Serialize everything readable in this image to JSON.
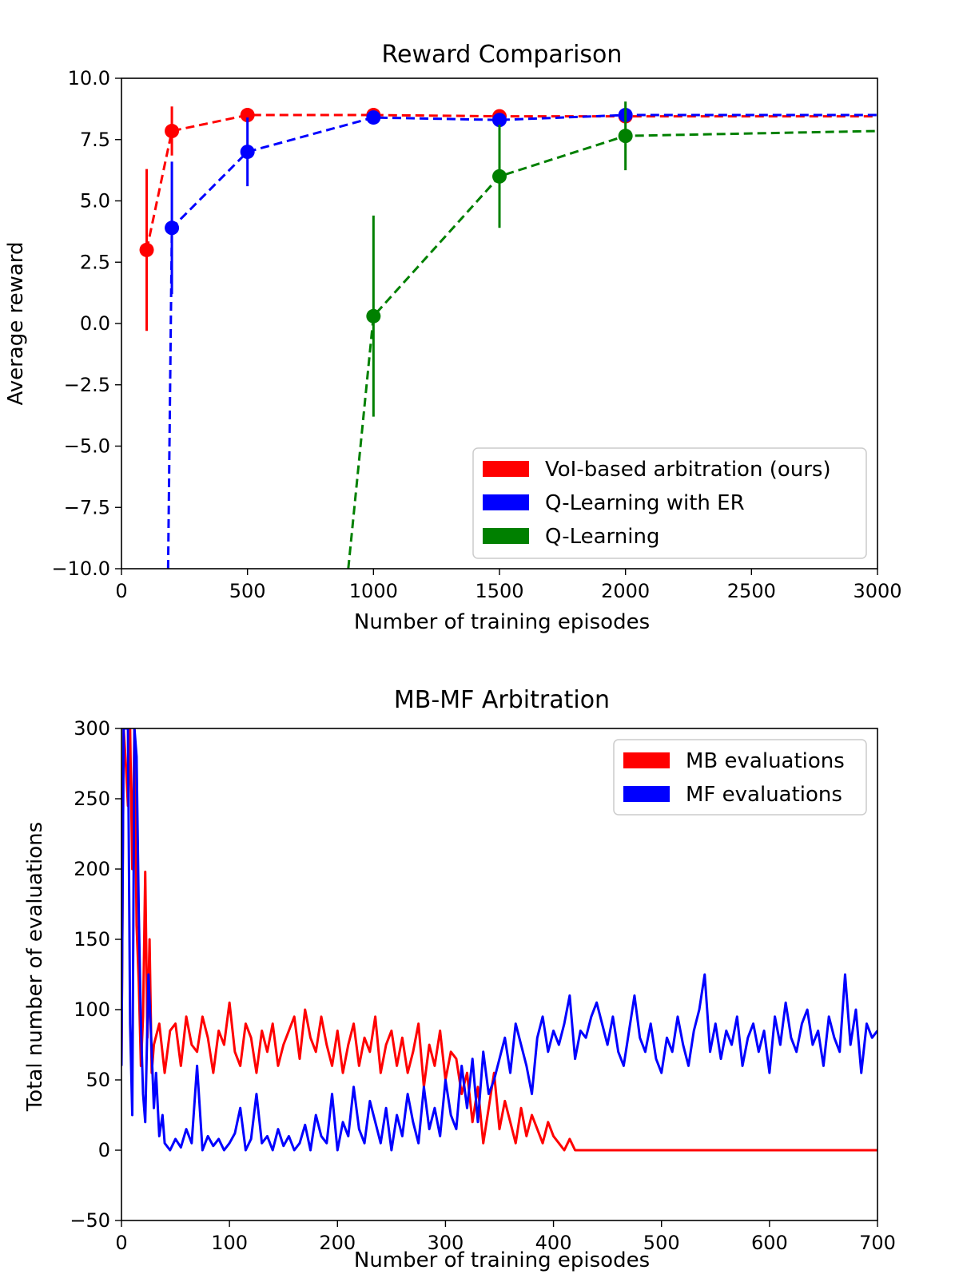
{
  "chart_data": [
    {
      "type": "line",
      "title": "Reward Comparison",
      "xlabel": "Number of training episodes",
      "ylabel": "Average reward",
      "xlim": [
        0,
        3000
      ],
      "ylim": [
        -10,
        10
      ],
      "xticks": [
        0,
        500,
        1000,
        1500,
        2000,
        2500,
        3000
      ],
      "xtick_labels": [
        "0",
        "500",
        "1000",
        "1500",
        "2000",
        "2500",
        "3000"
      ],
      "yticks": [
        -10,
        -7.5,
        -5,
        -2.5,
        0,
        2.5,
        5,
        7.5,
        10
      ],
      "ytick_labels": [
        "−10.0",
        "−7.5",
        "−5.0",
        "−2.5",
        "0.0",
        "2.5",
        "5.0",
        "7.5",
        "10.0"
      ],
      "legend_position": "lower-right",
      "series": [
        {
          "name": "VoI-based arbitration (ours)",
          "color": "#ff0000",
          "x": [
            100,
            200,
            500,
            1000,
            1500,
            2000,
            3000
          ],
          "y": [
            3.0,
            7.85,
            8.5,
            8.5,
            8.45,
            8.45,
            8.45
          ],
          "err": [
            3.3,
            1.0,
            0.0,
            0.0,
            0.0,
            0.0,
            null
          ],
          "markers": [
            true,
            true,
            true,
            true,
            true,
            true,
            false
          ]
        },
        {
          "name": "Q-Learning with ER",
          "color": "#0000ff",
          "x": [
            185,
            200,
            500,
            1000,
            1500,
            2000,
            3000
          ],
          "y": [
            -10,
            3.9,
            7.0,
            8.4,
            8.3,
            8.5,
            8.5
          ],
          "err": [
            null,
            2.7,
            1.4,
            0.0,
            0.0,
            0.0,
            null
          ],
          "markers": [
            false,
            true,
            true,
            true,
            true,
            true,
            false
          ]
        },
        {
          "name": "Q-Learning",
          "color": "#008000",
          "x": [
            900,
            1000,
            1500,
            2000,
            3000
          ],
          "y": [
            -10,
            0.3,
            6.0,
            7.65,
            7.85
          ],
          "err": [
            null,
            4.1,
            2.1,
            1.4,
            null
          ],
          "markers": [
            false,
            true,
            true,
            true,
            false
          ]
        }
      ]
    },
    {
      "type": "line",
      "title": "MB-MF Arbitration",
      "xlabel": "Number of training episodes",
      "ylabel": "Total number of evaluations",
      "xlim": [
        0,
        700
      ],
      "ylim": [
        -50,
        300
      ],
      "xticks": [
        0,
        100,
        200,
        300,
        400,
        500,
        600,
        700
      ],
      "xtick_labels": [
        "0",
        "100",
        "200",
        "300",
        "400",
        "500",
        "600",
        "700"
      ],
      "yticks": [
        -50,
        0,
        50,
        100,
        150,
        200,
        250,
        300
      ],
      "ytick_labels": [
        "−50",
        "0",
        "50",
        "100",
        "150",
        "200",
        "250",
        "300"
      ],
      "legend_position": "top-right",
      "series": [
        {
          "name": "MB evaluations",
          "color": "#ff0000",
          "x": [
            0,
            2,
            4,
            6,
            8,
            10,
            12,
            14,
            16,
            18,
            20,
            22,
            24,
            26,
            28,
            30,
            35,
            40,
            45,
            50,
            55,
            60,
            65,
            70,
            75,
            80,
            85,
            90,
            95,
            100,
            105,
            110,
            115,
            120,
            125,
            130,
            135,
            140,
            145,
            150,
            155,
            160,
            165,
            170,
            175,
            180,
            185,
            190,
            195,
            200,
            205,
            210,
            215,
            220,
            225,
            230,
            235,
            240,
            245,
            250,
            255,
            260,
            265,
            270,
            275,
            280,
            285,
            290,
            295,
            300,
            305,
            310,
            315,
            320,
            325,
            330,
            335,
            340,
            345,
            350,
            355,
            360,
            365,
            370,
            375,
            380,
            385,
            390,
            395,
            400,
            405,
            410,
            415,
            420,
            425,
            700
          ],
          "y": [
            60,
            300,
            275,
            245,
            300,
            200,
            300,
            160,
            120,
            60,
            95,
            198,
            80,
            150,
            55,
            75,
            90,
            55,
            85,
            90,
            60,
            95,
            75,
            70,
            95,
            80,
            55,
            85,
            75,
            105,
            70,
            60,
            90,
            80,
            55,
            85,
            70,
            90,
            60,
            75,
            85,
            95,
            65,
            100,
            80,
            70,
            95,
            75,
            60,
            85,
            55,
            75,
            90,
            60,
            80,
            70,
            95,
            55,
            75,
            85,
            60,
            80,
            55,
            70,
            90,
            45,
            75,
            60,
            85,
            50,
            70,
            65,
            40,
            55,
            20,
            45,
            5,
            30,
            55,
            15,
            35,
            20,
            5,
            30,
            10,
            25,
            15,
            5,
            20,
            10,
            5,
            0,
            8,
            0,
            0,
            0
          ]
        },
        {
          "name": "MF evaluations",
          "color": "#0000ff",
          "x": [
            0,
            2,
            4,
            6,
            8,
            10,
            12,
            14,
            16,
            18,
            20,
            22,
            25,
            28,
            30,
            32,
            35,
            38,
            40,
            45,
            50,
            55,
            60,
            65,
            70,
            75,
            80,
            85,
            90,
            95,
            100,
            105,
            110,
            115,
            120,
            125,
            130,
            135,
            140,
            145,
            150,
            155,
            160,
            165,
            170,
            175,
            180,
            185,
            190,
            195,
            200,
            205,
            210,
            215,
            220,
            225,
            230,
            235,
            240,
            245,
            250,
            255,
            260,
            265,
            270,
            275,
            280,
            285,
            290,
            295,
            300,
            305,
            310,
            315,
            320,
            325,
            330,
            335,
            340,
            345,
            350,
            355,
            360,
            365,
            370,
            375,
            380,
            385,
            390,
            395,
            400,
            405,
            410,
            415,
            420,
            425,
            430,
            435,
            440,
            445,
            450,
            455,
            460,
            465,
            470,
            475,
            480,
            485,
            490,
            495,
            500,
            505,
            510,
            515,
            520,
            525,
            530,
            535,
            540,
            545,
            550,
            555,
            560,
            565,
            570,
            575,
            580,
            585,
            590,
            595,
            600,
            605,
            610,
            615,
            620,
            625,
            630,
            635,
            640,
            645,
            650,
            655,
            660,
            665,
            670,
            675,
            680,
            685,
            690,
            695,
            700
          ],
          "y": [
            60,
            300,
            300,
            300,
            90,
            25,
            300,
            280,
            170,
            90,
            40,
            20,
            125,
            70,
            30,
            55,
            10,
            25,
            5,
            0,
            8,
            2,
            15,
            5,
            60,
            0,
            10,
            3,
            8,
            0,
            5,
            12,
            30,
            0,
            8,
            40,
            5,
            10,
            0,
            15,
            3,
            10,
            0,
            5,
            18,
            0,
            25,
            10,
            5,
            40,
            0,
            20,
            10,
            45,
            15,
            5,
            35,
            20,
            5,
            30,
            0,
            25,
            10,
            40,
            20,
            5,
            45,
            15,
            30,
            10,
            50,
            25,
            15,
            60,
            30,
            65,
            20,
            70,
            40,
            50,
            65,
            80,
            55,
            90,
            75,
            60,
            40,
            80,
            95,
            70,
            85,
            75,
            90,
            110,
            65,
            85,
            80,
            95,
            105,
            90,
            75,
            95,
            70,
            60,
            85,
            110,
            80,
            70,
            90,
            65,
            55,
            80,
            70,
            95,
            75,
            60,
            85,
            100,
            125,
            70,
            90,
            65,
            85,
            75,
            95,
            60,
            80,
            90,
            70,
            85,
            55,
            95,
            75,
            105,
            80,
            70,
            90,
            100,
            75,
            85,
            60,
            95,
            80,
            70,
            125,
            75,
            100,
            55,
            90,
            80,
            85
          ]
        }
      ]
    }
  ]
}
